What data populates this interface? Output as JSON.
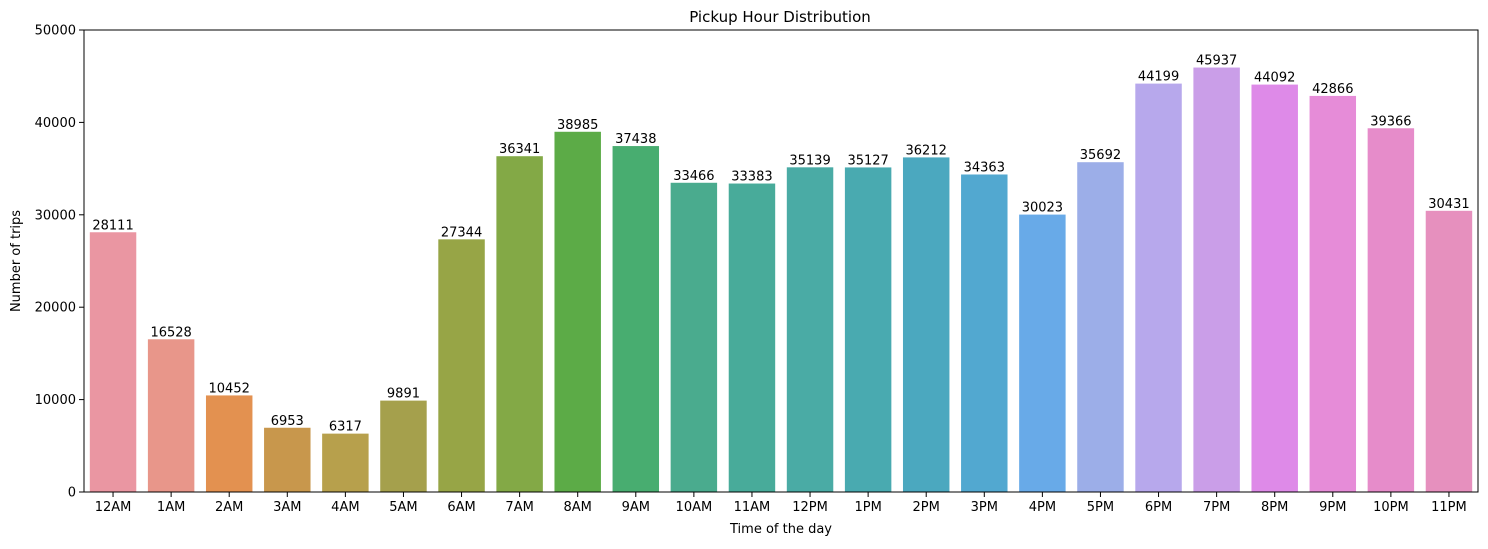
{
  "chart_data": {
    "type": "bar",
    "title": "Pickup Hour Distribution",
    "xlabel": "Time of the day",
    "ylabel": "Number of trips",
    "categories": [
      "12AM",
      "1AM",
      "2AM",
      "3AM",
      "4AM",
      "5AM",
      "6AM",
      "7AM",
      "8AM",
      "9AM",
      "10AM",
      "11AM",
      "12PM",
      "1PM",
      "2PM",
      "3PM",
      "4PM",
      "5PM",
      "6PM",
      "7PM",
      "8PM",
      "9PM",
      "10PM",
      "11PM"
    ],
    "values": [
      28111,
      16528,
      10452,
      6953,
      6317,
      9891,
      27344,
      36341,
      38985,
      37438,
      33466,
      33383,
      35139,
      35127,
      36212,
      34363,
      30023,
      35692,
      44199,
      45937,
      44092,
      42866,
      39366,
      30431
    ],
    "data_labels": [
      "28111",
      "16528",
      "10452",
      "6953",
      "6317",
      "9891",
      "27344",
      "36341",
      "38985",
      "37438",
      "33466",
      "33383",
      "35139",
      "35127",
      "36212",
      "34363",
      "30023",
      "35692",
      "44199",
      "45937",
      "44092",
      "42866",
      "39366",
      "30431"
    ],
    "colors": [
      "#ea96a2",
      "#e8968a",
      "#e39150",
      "#c8974c",
      "#b7a04c",
      "#a5a04c",
      "#97a546",
      "#83a946",
      "#5cab47",
      "#48ad70",
      "#4aab8e",
      "#48ab9a",
      "#4aaba5",
      "#49aab0",
      "#4ba8bf",
      "#52a8d0",
      "#68aae8",
      "#9caee8",
      "#b7a8ec",
      "#ca9ee8",
      "#de8ae8",
      "#e68cd8",
      "#e68cca",
      "#e690be"
    ],
    "yticks": [
      "0",
      "10000",
      "20000",
      "30000",
      "40000",
      "50000"
    ],
    "ylim": [
      0,
      50000
    ],
    "grid": false,
    "legend": "none"
  }
}
